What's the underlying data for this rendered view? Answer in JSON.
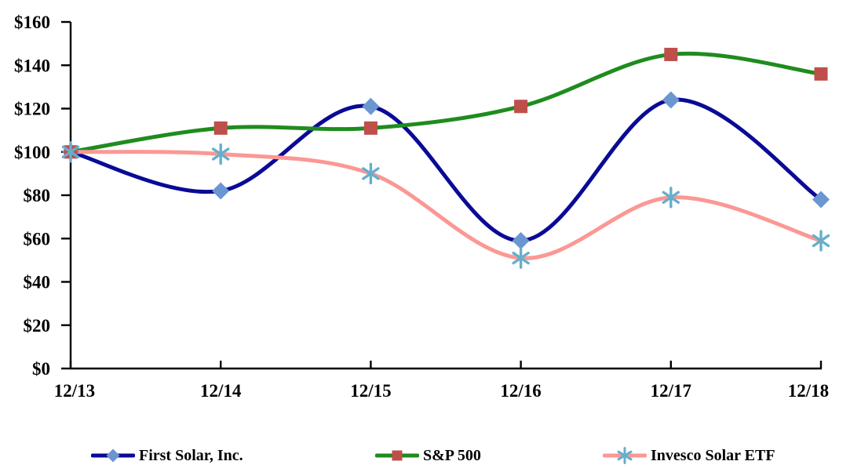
{
  "chart_data": {
    "type": "line",
    "title": "",
    "xlabel": "",
    "ylabel": "",
    "categories": [
      "12/13",
      "12/14",
      "12/15",
      "12/16",
      "12/17",
      "12/18"
    ],
    "y_tick_labels": [
      "$0",
      "$20",
      "$40",
      "$60",
      "$80",
      "$100",
      "$120",
      "$140",
      "$160"
    ],
    "ylim": [
      0,
      160
    ],
    "grid": false,
    "line_style": "smooth",
    "legend_position": "bottom",
    "axis_color": "#000000",
    "series": [
      {
        "name": "First Solar, Inc.",
        "marker": "diamond",
        "line_color": "#0A0A96",
        "marker_color": "#6A96D2",
        "values": [
          100,
          82,
          121,
          59,
          124,
          78
        ]
      },
      {
        "name": "S&P 500",
        "marker": "square",
        "line_color": "#1E8C1E",
        "marker_color": "#BE4F4B",
        "values": [
          100,
          111,
          111,
          121,
          145,
          136
        ]
      },
      {
        "name": "Invesco Solar ETF",
        "marker": "asterisk",
        "line_color": "#FB9894",
        "marker_color": "#66AECC",
        "values": [
          100,
          99,
          90,
          51,
          79,
          59
        ]
      }
    ]
  }
}
